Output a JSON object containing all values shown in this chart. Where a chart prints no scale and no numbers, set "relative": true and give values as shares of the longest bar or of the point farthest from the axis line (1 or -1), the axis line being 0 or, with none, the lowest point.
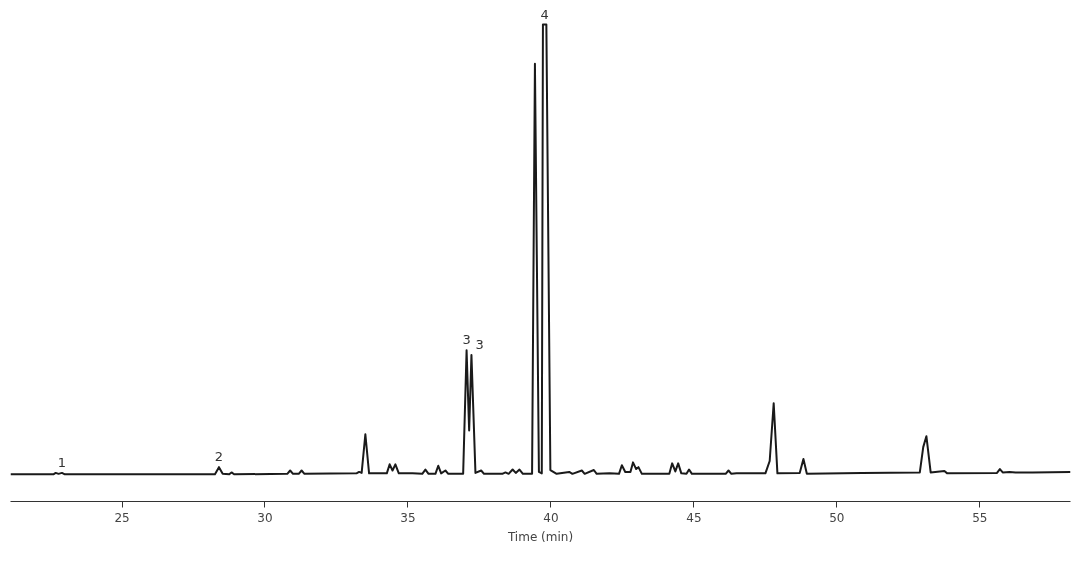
{
  "chart_data": {
    "type": "line",
    "relative": true,
    "xlabel": "Time (min)",
    "grid": false,
    "marker": "none",
    "line_style": "solid",
    "xlim": [
      21.1,
      58.17
    ],
    "xticks": [
      25,
      30,
      35,
      40,
      45,
      50,
      55
    ],
    "series": [
      {
        "color": "#1a1a1a",
        "x": [
          21.1,
          22.6,
          22.68,
          22.78,
          22.9,
          23.0,
          28.25,
          28.39,
          28.52,
          28.75,
          28.83,
          28.92,
          30.78,
          30.88,
          30.98,
          31.18,
          31.28,
          31.38,
          33.2,
          33.29,
          33.38,
          33.51,
          33.64,
          34.26,
          34.36,
          34.46,
          34.56,
          34.68,
          35.16,
          35.5,
          35.61,
          35.72,
          35.96,
          36.06,
          36.16,
          36.31,
          36.41,
          36.93,
          37.05,
          37.14,
          37.22,
          37.36,
          37.56,
          37.66,
          38.3,
          38.41,
          38.52,
          38.66,
          38.77,
          38.9,
          39.02,
          39.34,
          39.44,
          39.58,
          39.68,
          39.72,
          39.84,
          39.98,
          40.2,
          40.64,
          40.75,
          41.08,
          41.18,
          41.5,
          41.6,
          42.05,
          42.38,
          42.48,
          42.6,
          42.78,
          42.87,
          42.98,
          43.06,
          43.18,
          44.14,
          44.24,
          44.35,
          44.45,
          44.56,
          44.74,
          44.83,
          44.93,
          46.11,
          46.21,
          46.31,
          46.49,
          47.5,
          47.65,
          47.79,
          47.92,
          48.7,
          48.83,
          48.95,
          50.87,
          52.9,
          53.02,
          53.13,
          53.28,
          53.76,
          53.86,
          55.6,
          55.7,
          55.8,
          56.04,
          56.25,
          56.84,
          58.17
        ],
        "values": [
          0.057,
          0.057,
          0.06,
          0.058,
          0.06,
          0.057,
          0.057,
          0.072,
          0.058,
          0.057,
          0.061,
          0.057,
          0.058,
          0.065,
          0.058,
          0.058,
          0.065,
          0.058,
          0.059,
          0.062,
          0.06,
          0.141,
          0.059,
          0.059,
          0.078,
          0.065,
          0.078,
          0.059,
          0.059,
          0.058,
          0.067,
          0.058,
          0.058,
          0.075,
          0.059,
          0.065,
          0.058,
          0.058,
          0.317,
          0.149,
          0.307,
          0.06,
          0.065,
          0.058,
          0.058,
          0.061,
          0.058,
          0.067,
          0.06,
          0.067,
          0.058,
          0.058,
          0.918,
          0.062,
          0.059,
          1,
          1,
          0.066,
          0.058,
          0.062,
          0.058,
          0.065,
          0.058,
          0.066,
          0.058,
          0.059,
          0.058,
          0.076,
          0.062,
          0.062,
          0.082,
          0.068,
          0.072,
          0.058,
          0.058,
          0.08,
          0.063,
          0.08,
          0.059,
          0.058,
          0.067,
          0.058,
          0.058,
          0.065,
          0.058,
          0.059,
          0.059,
          0.085,
          0.206,
          0.059,
          0.06,
          0.089,
          0.058,
          0.06,
          0.061,
          0.114,
          0.137,
          0.061,
          0.064,
          0.059,
          0.06,
          0.068,
          0.061,
          0.062,
          0.061,
          0.061,
          0.062
        ]
      }
    ],
    "annotations": [
      {
        "text": "1",
        "x": 22.9,
        "y": 0.06
      },
      {
        "text": "2",
        "x": 28.39,
        "y": 0.072
      },
      {
        "text": "3",
        "x": 37.05,
        "y": 0.317
      },
      {
        "text": "3",
        "x": 37.22,
        "y": 0.307
      },
      {
        "text": "4",
        "x": 39.78,
        "y": 1
      }
    ]
  }
}
